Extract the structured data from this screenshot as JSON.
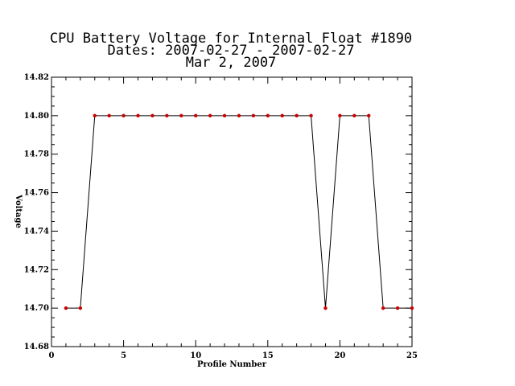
{
  "chart_data": {
    "type": "line",
    "title_lines": [
      "CPU Battery Voltage for Internal Float #1890",
      "Dates:  2007-02-27 -  2007-02-27",
      "Mar  2, 2007"
    ],
    "xlabel": "Profile Number",
    "ylabel": "Voltage",
    "xlim": [
      0,
      25
    ],
    "ylim": [
      14.68,
      14.82
    ],
    "x_ticks": [
      0,
      5,
      10,
      15,
      20,
      25
    ],
    "y_ticks": [
      14.68,
      14.7,
      14.72,
      14.74,
      14.76,
      14.78,
      14.8,
      14.82
    ],
    "x_tick_labels": [
      "0",
      "5",
      "10",
      "15",
      "20",
      "25"
    ],
    "y_tick_labels": [
      "14.68",
      "14.70",
      "14.72",
      "14.74",
      "14.76",
      "14.78",
      "14.80",
      "14.82"
    ],
    "grid": false,
    "series": [
      {
        "x": [
          1,
          2,
          3,
          4,
          5,
          6,
          7,
          8,
          9,
          10,
          11,
          12,
          13,
          14,
          15,
          16,
          17,
          18,
          19,
          20,
          21,
          22,
          23,
          24,
          25
        ],
        "y": [
          14.7,
          14.7,
          14.8,
          14.8,
          14.8,
          14.8,
          14.8,
          14.8,
          14.8,
          14.8,
          14.8,
          14.8,
          14.8,
          14.8,
          14.8,
          14.8,
          14.8,
          14.8,
          14.7,
          14.8,
          14.8,
          14.8,
          14.7,
          14.7,
          14.7
        ],
        "line_color": "#000000",
        "marker_color": "#cc0000"
      }
    ]
  }
}
